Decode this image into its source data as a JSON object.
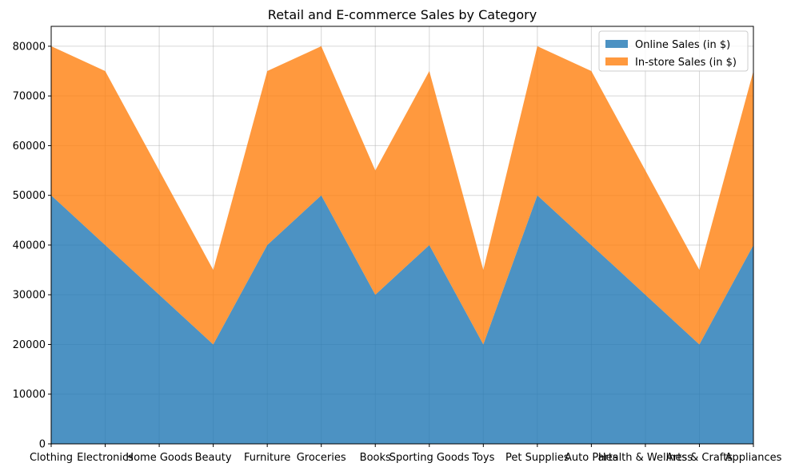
{
  "chart_data": {
    "type": "area",
    "title": "Retail and E-commerce Sales by Category",
    "xlabel": "",
    "ylabel": "",
    "categories": [
      "Clothing",
      "Electronics",
      "Home Goods",
      "Beauty",
      "Furniture",
      "Groceries",
      "Books",
      "Sporting Goods",
      "Toys",
      "Pet Supplies",
      "Auto Parts",
      "Health & Wellness",
      "Arts & Crafts",
      "Appliances"
    ],
    "stacked": true,
    "series": [
      {
        "name": "Online Sales (in $)",
        "color": "#1f77b4",
        "values": [
          50000,
          40000,
          30000,
          20000,
          40000,
          50000,
          30000,
          40000,
          20000,
          50000,
          40000,
          30000,
          20000,
          40000
        ]
      },
      {
        "name": "In-store Sales (in $)",
        "color": "#ff7f0e",
        "values": [
          30000,
          35000,
          25000,
          15000,
          35000,
          30000,
          25000,
          35000,
          15000,
          30000,
          35000,
          25000,
          15000,
          35000
        ]
      }
    ],
    "ylim": [
      0,
      84000
    ],
    "yticks": [
      0,
      10000,
      20000,
      30000,
      40000,
      50000,
      60000,
      70000,
      80000
    ],
    "grid": true,
    "legend_position": "upper-right"
  }
}
